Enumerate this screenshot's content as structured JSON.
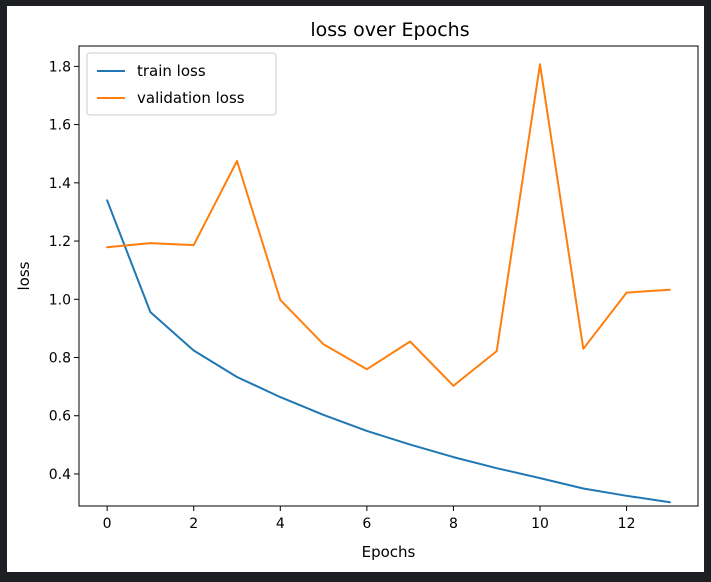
{
  "chart_data": {
    "type": "line",
    "title": "loss over Epochs",
    "xlabel": "Epochs",
    "ylabel": "loss",
    "xlim": [
      -0.65,
      13.65
    ],
    "ylim": [
      0.29,
      1.87
    ],
    "xticks": [
      0,
      2,
      4,
      6,
      8,
      10,
      12
    ],
    "yticks": [
      0.4,
      0.6,
      0.8,
      1.0,
      1.2,
      1.4,
      1.6,
      1.8
    ],
    "grid": false,
    "legend_position": "top-left",
    "x": [
      0,
      1,
      2,
      3,
      4,
      5,
      6,
      7,
      8,
      9,
      10,
      11,
      12,
      13
    ],
    "series": [
      {
        "name": "train loss",
        "color": "#1f77b4",
        "values": [
          1.34,
          0.956,
          0.824,
          0.733,
          0.664,
          0.603,
          0.548,
          0.501,
          0.458,
          0.42,
          0.386,
          0.35,
          0.325,
          0.303
        ]
      },
      {
        "name": "validation loss",
        "color": "#ff7f0e",
        "values": [
          1.179,
          1.193,
          1.186,
          1.475,
          0.998,
          0.845,
          0.76,
          0.855,
          0.703,
          0.822,
          1.807,
          0.83,
          1.023,
          1.033
        ]
      }
    ]
  }
}
